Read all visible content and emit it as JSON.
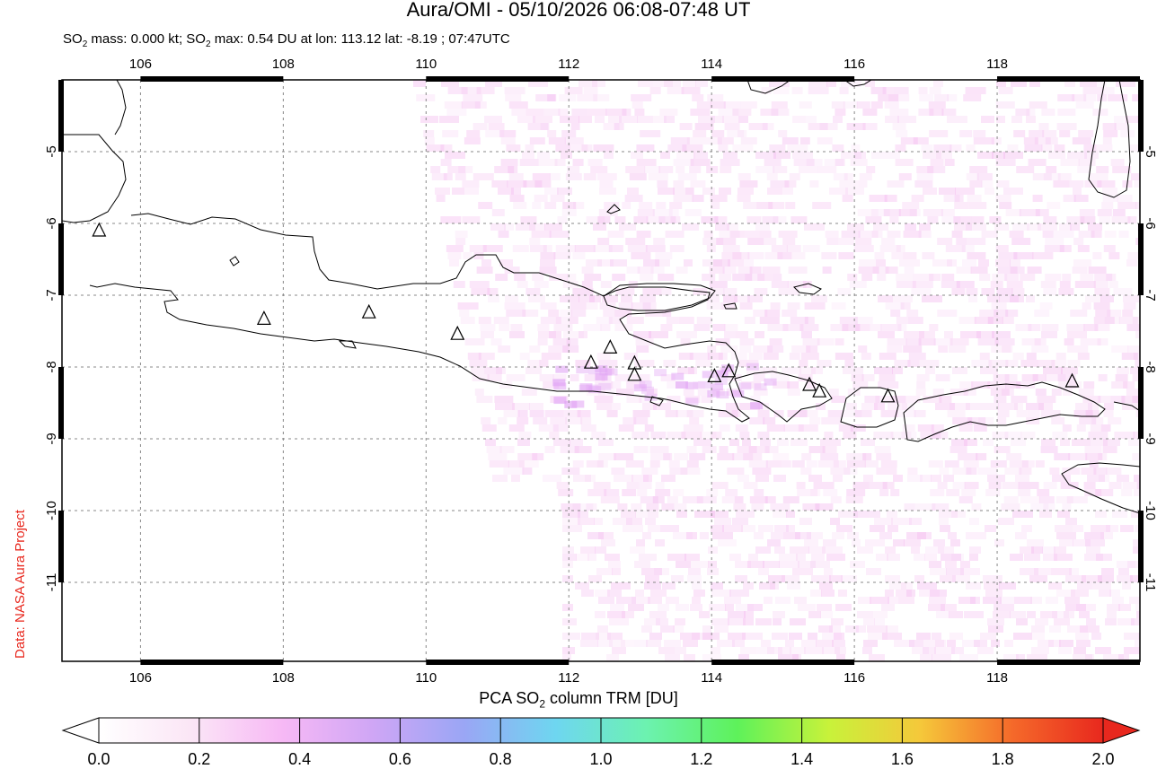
{
  "header": {
    "title": "Aura/OMI - 05/10/2026 06:08-07:48 UT",
    "subtitle_prefix": "SO",
    "subtitle_sub": "2",
    "subtitle_mid": " mass: 0.000 kt; SO",
    "subtitle_sub2": "2",
    "subtitle_rest": " max: 0.54 DU at lon: 113.12 lat: -8.19 ; 07:47UTC"
  },
  "credit": "Data: NASA Aura Project",
  "map": {
    "lon_range": [
      104.9,
      120.0
    ],
    "lat_range": [
      -12.1,
      -4.0
    ],
    "lon_ticks": [
      "106",
      "108",
      "110",
      "112",
      "114",
      "116",
      "118"
    ],
    "lon_tick_values": [
      106,
      108,
      110,
      112,
      114,
      116,
      118
    ],
    "lat_ticks": [
      "-5",
      "-6",
      "-7",
      "-8",
      "-9",
      "-10",
      "-11"
    ],
    "lat_tick_values": [
      -5,
      -6,
      -7,
      -8,
      -9,
      -10,
      -11
    ],
    "grid": "dotted",
    "volcanoes": [
      {
        "lon": 105.42,
        "lat": -6.1
      },
      {
        "lon": 107.73,
        "lat": -7.33
      },
      {
        "lon": 109.2,
        "lat": -7.24
      },
      {
        "lon": 110.44,
        "lat": -7.54
      },
      {
        "lon": 112.31,
        "lat": -7.94
      },
      {
        "lon": 112.58,
        "lat": -7.73
      },
      {
        "lon": 112.92,
        "lat": -7.95
      },
      {
        "lon": 112.92,
        "lat": -8.11
      },
      {
        "lon": 114.04,
        "lat": -8.13
      },
      {
        "lon": 114.24,
        "lat": -8.06
      },
      {
        "lon": 115.37,
        "lat": -8.25
      },
      {
        "lon": 115.51,
        "lat": -8.34
      },
      {
        "lon": 116.47,
        "lat": -8.41
      },
      {
        "lon": 119.05,
        "lat": -8.2
      }
    ],
    "so2_max_location": {
      "lon": 113.12,
      "lat": -8.19,
      "value": 0.54
    }
  },
  "colorbar": {
    "title_prefix": "PCA SO",
    "title_sub": "2",
    "title_rest": " column TRM [DU]",
    "ticks": [
      "0.0",
      "0.2",
      "0.4",
      "0.6",
      "0.8",
      "1.0",
      "1.2",
      "1.4",
      "1.6",
      "1.8",
      "2.0"
    ],
    "range": [
      0.0,
      2.0
    ],
    "colors": [
      "#ffffff",
      "#fbe6f6",
      "#f7b9f5",
      "#cfa6f5",
      "#9aa6f5",
      "#6ed6f0",
      "#6cf2b0",
      "#5ef25a",
      "#c8f23a",
      "#f5c83a",
      "#f56a2a",
      "#e8281e"
    ]
  }
}
